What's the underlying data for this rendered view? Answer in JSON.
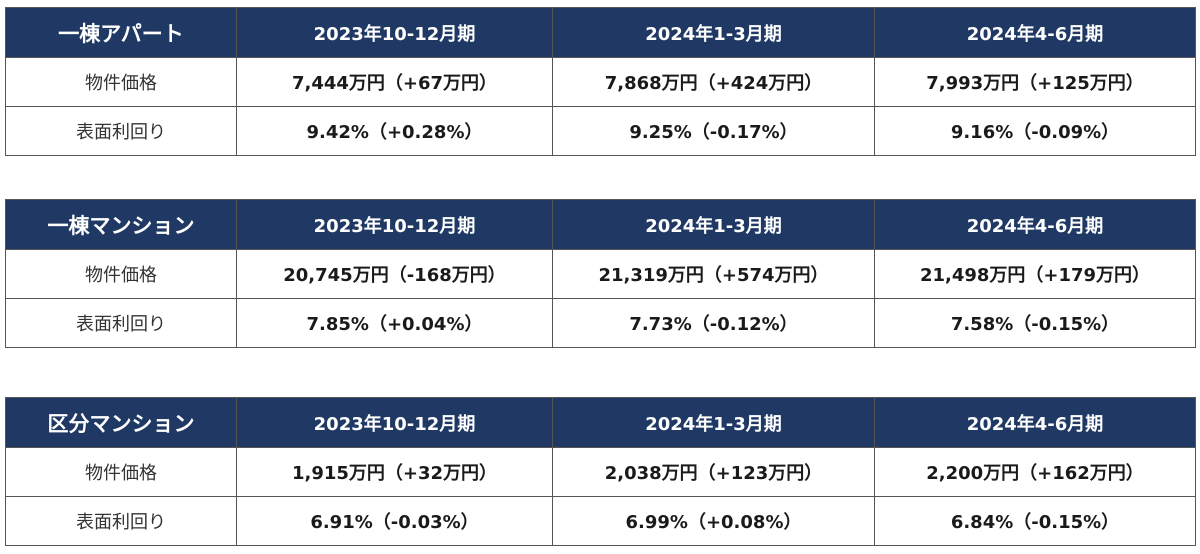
{
  "tables": [
    {
      "category": "一棟アパート",
      "periods": [
        "2023年10-12月期",
        "2024年1-3月期",
        "2024年4-6月期"
      ],
      "rows": [
        {
          "label": "物件価格",
          "values": [
            "7,444万円（+67万円）",
            "7,868万円（+424万円）",
            "7,993万円（+125万円）"
          ]
        },
        {
          "label": "表面利回り",
          "values": [
            "9.42%（+0.28%）",
            "9.25%（-0.17%）",
            "9.16%（-0.09%）"
          ]
        }
      ]
    },
    {
      "category": "一棟マンション",
      "periods": [
        "2023年10-12月期",
        "2024年1-3月期",
        "2024年4-6月期"
      ],
      "rows": [
        {
          "label": "物件価格",
          "values": [
            "20,745万円（-168万円）",
            "21,319万円（+574万円）",
            "21,498万円（+179万円）"
          ]
        },
        {
          "label": "表面利回り",
          "values": [
            "7.85%（+0.04%）",
            "7.73%（-0.12%）",
            "7.58%（-0.15%）"
          ]
        }
      ]
    },
    {
      "category": "区分マンション",
      "periods": [
        "2023年10-12月期",
        "2024年1-3月期",
        "2024年4-6月期"
      ],
      "rows": [
        {
          "label": "物件価格",
          "values": [
            "1,915万円（+32万円）",
            "2,038万円（+123万円）",
            "2,200万円（+162万円）"
          ]
        },
        {
          "label": "表面利回り",
          "values": [
            "6.91%（-0.03%）",
            "6.99%（+0.08%）",
            "6.84%（-0.15%）"
          ]
        }
      ]
    }
  ],
  "colors": {
    "header_bg": "#1f3864",
    "header_text": "#ffffff",
    "border": "#555555"
  }
}
